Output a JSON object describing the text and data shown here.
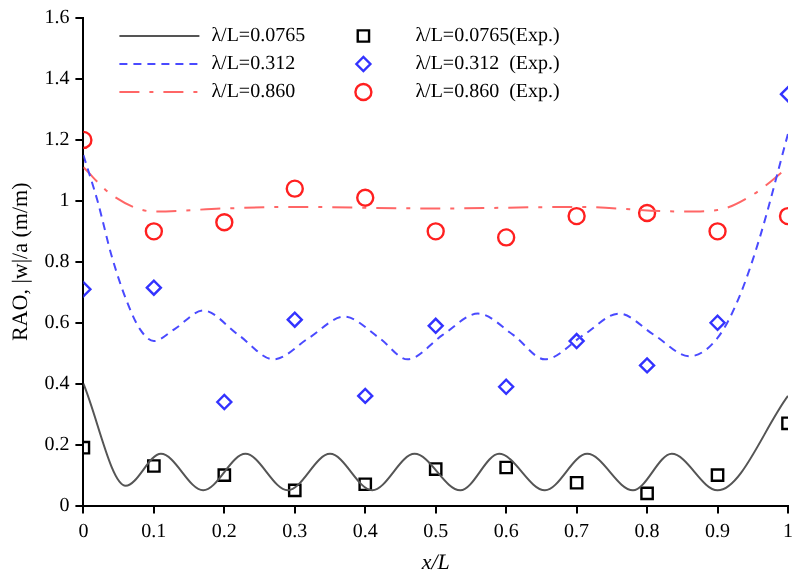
{
  "chart_data": {
    "type": "line",
    "xlabel": "x/L",
    "ylabel": "RAO, |w|/a (m/m)",
    "xlim": [
      0,
      1
    ],
    "ylim": [
      0,
      1.6
    ],
    "xticks": [
      0,
      0.1,
      0.2,
      0.3,
      0.4,
      0.5,
      0.6,
      0.7,
      0.8,
      0.9,
      1
    ],
    "yticks": [
      0,
      0.2,
      0.4,
      0.6,
      0.8,
      1,
      1.2,
      1.4,
      1.6
    ],
    "grid": false,
    "legend": "top",
    "series": [
      {
        "name": "λ/L=0.0765",
        "type": "line",
        "color": "#555555",
        "line_style": "solid",
        "marker": "none",
        "x": [
          0,
          0.06,
          0.11,
          0.17,
          0.23,
          0.29,
          0.35,
          0.41,
          0.47,
          0.535,
          0.59,
          0.655,
          0.715,
          0.78,
          0.835,
          0.9,
          1
        ],
        "values": [
          0.4,
          0.065,
          0.17,
          0.05,
          0.17,
          0.05,
          0.17,
          0.05,
          0.17,
          0.05,
          0.17,
          0.05,
          0.17,
          0.05,
          0.17,
          0.05,
          0.36
        ]
      },
      {
        "name": "λ/L=0.0765(Exp.)",
        "type": "scatter",
        "color": "#000000",
        "marker": "square",
        "x": [
          0,
          0.1,
          0.2,
          0.3,
          0.4,
          0.5,
          0.6,
          0.7,
          0.8,
          0.9,
          1
        ],
        "values": [
          0.19,
          0.13,
          0.1,
          0.05,
          0.07,
          0.12,
          0.125,
          0.075,
          0.04,
          0.1,
          0.27
        ]
      },
      {
        "name": "λ/L=0.312",
        "type": "line",
        "color": "#4a4aff",
        "line_style": "dashed",
        "marker": "none",
        "x": [
          0,
          0.02,
          0.04,
          0.06,
          0.08,
          0.1,
          0.13,
          0.17,
          0.22,
          0.27,
          0.32,
          0.37,
          0.42,
          0.46,
          0.51,
          0.56,
          0.61,
          0.655,
          0.71,
          0.76,
          0.81,
          0.86,
          0.9,
          0.93,
          0.96,
          1
        ],
        "values": [
          1.15,
          1.0,
          0.82,
          0.68,
          0.58,
          0.54,
          0.58,
          0.64,
          0.56,
          0.48,
          0.55,
          0.62,
          0.55,
          0.48,
          0.56,
          0.63,
          0.56,
          0.48,
          0.56,
          0.63,
          0.56,
          0.49,
          0.55,
          0.68,
          0.88,
          1.22
        ]
      },
      {
        "name": "λ/L=0.312  (Exp.)",
        "type": "scatter",
        "color": "#3333ff",
        "marker": "diamond",
        "x": [
          0,
          0.1,
          0.2,
          0.3,
          0.4,
          0.5,
          0.6,
          0.7,
          0.8,
          0.9,
          1
        ],
        "values": [
          0.71,
          0.715,
          0.34,
          0.61,
          0.36,
          0.59,
          0.39,
          0.54,
          0.46,
          0.6,
          1.35
        ]
      },
      {
        "name": "λ/L=0.860",
        "type": "line",
        "color": "#ff6666",
        "line_style": "dashdot",
        "marker": "none",
        "x": [
          0,
          0.04,
          0.1,
          0.2,
          0.3,
          0.5,
          0.7,
          0.85,
          0.9,
          0.95,
          1
        ],
        "values": [
          1.11,
          1.02,
          0.965,
          0.975,
          0.98,
          0.975,
          0.98,
          0.965,
          0.97,
          1.02,
          1.11
        ]
      },
      {
        "name": "λ/L=0.860  (Exp.)",
        "type": "scatter",
        "color": "#ff2020",
        "marker": "circle",
        "x": [
          0,
          0.1,
          0.2,
          0.3,
          0.4,
          0.5,
          0.6,
          0.7,
          0.8,
          0.9,
          1
        ],
        "values": [
          1.2,
          0.9,
          0.93,
          1.04,
          1.01,
          0.9,
          0.88,
          0.95,
          0.96,
          0.9,
          0.95
        ]
      }
    ]
  }
}
